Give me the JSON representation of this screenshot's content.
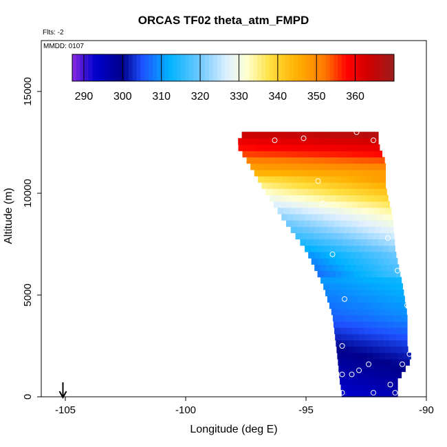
{
  "chart_data": {
    "type": "heatmap",
    "title": "ORCAS TF02 theta_atm_FMPD",
    "subtitle_left": "Flts: -2",
    "annotation": "MMDD: 0107",
    "xlabel": "Longitude (deg E)",
    "ylabel": "Altitude (m)",
    "xlim": [
      -106,
      -90
    ],
    "ylim": [
      0,
      17500
    ],
    "x_ticks": [
      -105,
      -100,
      -95,
      -90
    ],
    "x_tick_labels": [
      "-105",
      "-100",
      "-95",
      "-90"
    ],
    "y_ticks": [
      0,
      5000,
      10000,
      15000
    ],
    "y_tick_labels": [
      "0",
      "5000",
      "10000",
      "15000"
    ],
    "colorbar": {
      "min": 287,
      "max": 370,
      "ticks": [
        290,
        300,
        310,
        320,
        330,
        340,
        350,
        360
      ],
      "tick_labels": [
        "290",
        "300",
        "310",
        "320",
        "330",
        "340",
        "350",
        "360"
      ],
      "stops": [
        {
          "v": 287,
          "c": "#8a2be2"
        },
        {
          "v": 293,
          "c": "#0000cd"
        },
        {
          "v": 300,
          "c": "#00008b"
        },
        {
          "v": 305,
          "c": "#1e50ff"
        },
        {
          "v": 312,
          "c": "#00b2ff"
        },
        {
          "v": 320,
          "c": "#6fc8ff"
        },
        {
          "v": 327,
          "c": "#dff0ff"
        },
        {
          "v": 332,
          "c": "#ffffd0"
        },
        {
          "v": 338,
          "c": "#ffe040"
        },
        {
          "v": 345,
          "c": "#ffb000"
        },
        {
          "v": 352,
          "c": "#ff7a00"
        },
        {
          "v": 358,
          "c": "#ff0000"
        },
        {
          "v": 363,
          "c": "#d40000"
        },
        {
          "v": 370,
          "c": "#9b1c1c"
        }
      ]
    },
    "flight_marker": {
      "lon": -105.1,
      "symbol": "down-arrow"
    },
    "domain_left_edge": [
      [
        13000,
        -97.6
      ],
      [
        12400,
        -97.9
      ],
      [
        11500,
        -97.4
      ],
      [
        10300,
        -96.8
      ],
      [
        8800,
        -96.0
      ],
      [
        7200,
        -95.0
      ],
      [
        5500,
        -94.3
      ],
      [
        4000,
        -93.9
      ],
      [
        2000,
        -93.7
      ],
      [
        800,
        -93.6
      ],
      [
        0,
        -93.5
      ]
    ],
    "domain_right_edge": [
      [
        13000,
        -92.0
      ],
      [
        12400,
        -92.0
      ],
      [
        11500,
        -91.7
      ],
      [
        10300,
        -91.7
      ],
      [
        8800,
        -91.4
      ],
      [
        7200,
        -91.3
      ],
      [
        5500,
        -91.0
      ],
      [
        4000,
        -90.8
      ],
      [
        2400,
        -90.8
      ],
      [
        1900,
        -90.6
      ],
      [
        800,
        -91.2
      ],
      [
        0,
        -91.2
      ]
    ],
    "temperature_profile": [
      [
        0,
        294
      ],
      [
        1200,
        298
      ],
      [
        2500,
        302
      ],
      [
        4000,
        308
      ],
      [
        5500,
        311
      ],
      [
        7000,
        315
      ],
      [
        8000,
        322
      ],
      [
        9000,
        328
      ],
      [
        9800,
        335
      ],
      [
        10600,
        342
      ],
      [
        11400,
        350
      ],
      [
        12000,
        357
      ],
      [
        12600,
        362
      ],
      [
        13100,
        368
      ]
    ],
    "measurement_points": [
      {
        "lon": -96.3,
        "alt": 12600
      },
      {
        "lon": -95.1,
        "alt": 12700
      },
      {
        "lon": -92.9,
        "alt": 13000
      },
      {
        "lon": -92.2,
        "alt": 12600
      },
      {
        "lon": -94.5,
        "alt": 10600
      },
      {
        "lon": -94.3,
        "alt": 9500
      },
      {
        "lon": -91.6,
        "alt": 7800
      },
      {
        "lon": -93.9,
        "alt": 7000
      },
      {
        "lon": -91.2,
        "alt": 6200
      },
      {
        "lon": -93.4,
        "alt": 4800
      },
      {
        "lon": -90.8,
        "alt": 4500
      },
      {
        "lon": -93.5,
        "alt": 2500
      },
      {
        "lon": -90.7,
        "alt": 2100
      },
      {
        "lon": -92.4,
        "alt": 1600
      },
      {
        "lon": -91.0,
        "alt": 1600
      },
      {
        "lon": -93.5,
        "alt": 1100
      },
      {
        "lon": -93.1,
        "alt": 1100
      },
      {
        "lon": -92.8,
        "alt": 1300
      },
      {
        "lon": -91.5,
        "alt": 600
      },
      {
        "lon": -93.5,
        "alt": 200
      },
      {
        "lon": -92.2,
        "alt": 200
      },
      {
        "lon": -91.3,
        "alt": 200
      }
    ]
  }
}
